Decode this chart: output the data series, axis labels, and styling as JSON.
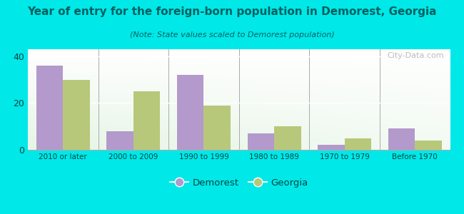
{
  "categories": [
    "2010 or later",
    "2000 to 2009",
    "1990 to 1999",
    "1980 to 1989",
    "1970 to 1979",
    "Before 1970"
  ],
  "demorest_values": [
    36,
    8,
    32,
    7,
    2,
    9
  ],
  "georgia_values": [
    30,
    25,
    19,
    10,
    5,
    4
  ],
  "demorest_color": "#b399cc",
  "georgia_color": "#b8c87a",
  "title": "Year of entry for the foreign-born population in Demorest, Georgia",
  "subtitle": "(Note: State values scaled to Demorest population)",
  "yticks": [
    0,
    20,
    40
  ],
  "ylim": [
    0,
    43
  ],
  "bg_outer": "#00e8e8",
  "title_color": "#006060",
  "subtitle_color": "#006060",
  "bar_width": 0.38,
  "legend_labels": [
    "Demorest",
    "Georgia"
  ],
  "watermark": "City-Data.com"
}
